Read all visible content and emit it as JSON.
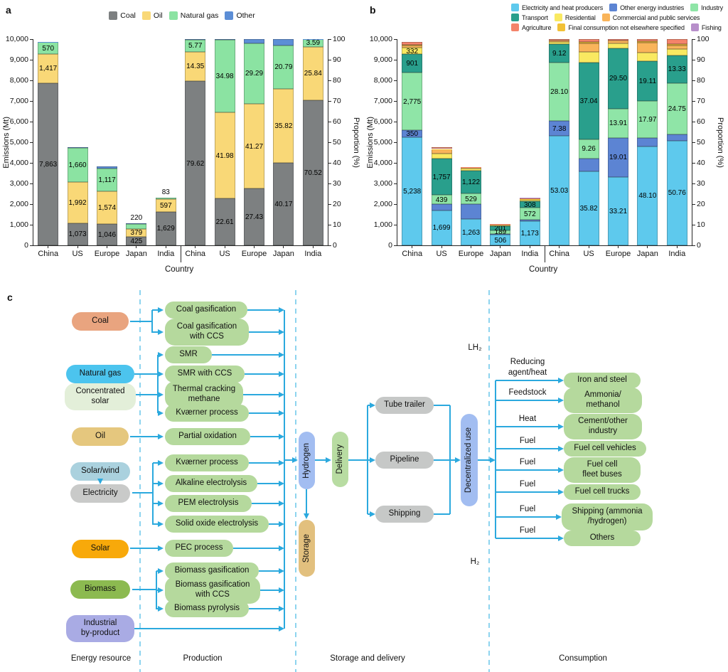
{
  "figure": {
    "panel_a_label": "a",
    "panel_b_label": "b",
    "panel_c_label": "c"
  },
  "chart_data": [
    {
      "type": "bar",
      "panel": "a",
      "stacked": true,
      "xlabel": "Country",
      "ylabel_left": "Emissions (Mt)",
      "ylabel_right": "Proportion (%)",
      "ylim_left": [
        0,
        10000
      ],
      "ylim_right": [
        0,
        100
      ],
      "yticks_left": [
        "0",
        "1,000",
        "2,000",
        "3,000",
        "4,000",
        "5,000",
        "6,000",
        "7,000",
        "8,000",
        "9,000",
        "10,000"
      ],
      "yticks_right": [
        "0",
        "10",
        "20",
        "30",
        "40",
        "50",
        "60",
        "70",
        "80",
        "90",
        "100"
      ],
      "series": [
        {
          "name": "Coal",
          "color": "#7d8081"
        },
        {
          "name": "Oil",
          "color": "#f9d877"
        },
        {
          "name": "Natural gas",
          "color": "#8be3a2"
        },
        {
          "name": "Other",
          "color": "#5c8ed6"
        }
      ],
      "legend_rows": [
        [
          "Coal",
          "Oil",
          "Natural gas",
          "Other"
        ]
      ],
      "groups": [
        {
          "axis": "left",
          "categories": [
            "China",
            "US",
            "Europe",
            "Japan",
            "India"
          ],
          "bars": [
            {
              "values": [
                7863,
                1417,
                570,
                25
              ],
              "labels": [
                "7,863",
                "1,417",
                "570",
                null
              ]
            },
            {
              "values": [
                1073,
                1992,
                1660,
                20
              ],
              "labels": [
                "1,073",
                "1,992",
                "1,660",
                null
              ]
            },
            {
              "values": [
                1046,
                1574,
                1117,
                75
              ],
              "labels": [
                "1,046",
                "1,574",
                "1,117",
                null
              ]
            },
            {
              "values": [
                425,
                379,
                220,
                33
              ],
              "labels": [
                "425",
                "379",
                "220",
                null
              ]
            },
            {
              "values": [
                1629,
                597,
                83,
                1
              ],
              "labels": [
                "1,629",
                "597",
                "83",
                null
              ]
            }
          ]
        },
        {
          "axis": "right",
          "categories": [
            "China",
            "US",
            "Europe",
            "Japan",
            "India"
          ],
          "bars": [
            {
              "values": [
                79.62,
                14.35,
                5.77,
                0.26
              ],
              "labels": [
                "79.62",
                "14.35",
                "5.77",
                null
              ]
            },
            {
              "values": [
                22.61,
                41.98,
                34.98,
                0.43
              ],
              "labels": [
                "22.61",
                "41.98",
                "34.98",
                null
              ]
            },
            {
              "values": [
                27.43,
                41.27,
                29.29,
                2.01
              ],
              "labels": [
                "27.43",
                "41.27",
                "29.29",
                null
              ]
            },
            {
              "values": [
                40.17,
                35.82,
                20.79,
                3.22
              ],
              "labels": [
                "40.17",
                "35.82",
                "20.79",
                null
              ]
            },
            {
              "values": [
                70.52,
                25.84,
                3.59,
                0.05
              ],
              "labels": [
                "70.52",
                "25.84",
                "3.59",
                null
              ]
            }
          ]
        }
      ]
    },
    {
      "type": "bar",
      "panel": "b",
      "stacked": true,
      "xlabel": "Country",
      "ylabel_left": "Emissions (Mt)",
      "ylabel_right": "Proportion (%)",
      "ylim_left": [
        0,
        10000
      ],
      "ylim_right": [
        0,
        100
      ],
      "yticks_left": [
        "0",
        "1,000",
        "2,000",
        "3,000",
        "4,000",
        "5,000",
        "6,000",
        "7,000",
        "8,000",
        "9,000",
        "10,000"
      ],
      "yticks_right": [
        "0",
        "10",
        "20",
        "30",
        "40",
        "50",
        "60",
        "70",
        "80",
        "90",
        "100"
      ],
      "series": [
        {
          "name": "Electricity and heat producers",
          "color": "#5ec9ed"
        },
        {
          "name": "Other energy industries",
          "color": "#5c84d3"
        },
        {
          "name": "Industry",
          "color": "#8fe5a7"
        },
        {
          "name": "Transport",
          "color": "#299f8c"
        },
        {
          "name": "Residential",
          "color": "#f9e961"
        },
        {
          "name": "Commercial and public services",
          "color": "#f9b45a"
        },
        {
          "name": "Final consumption not elsewhere specified",
          "color": "#f2c136"
        },
        {
          "name": "Agriculture",
          "color": "#f4836a"
        },
        {
          "name": "Fishing",
          "color": "#b78fca"
        }
      ],
      "legend_rows": [
        [
          "Electricity and heat producers",
          "Other energy industries",
          "Industry"
        ],
        [
          "Transport",
          "Residential",
          "Commercial and public services"
        ],
        [
          "Agriculture",
          "Final consumption not elsewhere specified",
          "Fishing"
        ]
      ],
      "groups": [
        {
          "axis": "left",
          "categories": [
            "China",
            "US",
            "Europe",
            "Japan",
            "India"
          ],
          "bars": [
            {
              "values": [
                5238,
                350,
                2775,
                901,
                332,
                110,
                32,
                140,
                0
              ],
              "labels": [
                "5,238",
                "350",
                "2,775",
                "901",
                "332",
                null,
                null,
                null,
                null
              ]
            },
            {
              "values": [
                1699,
                304,
                439,
                1757,
                247,
                199,
                28,
                71,
                0
              ],
              "labels": [
                "1,699",
                null,
                "439",
                "1,757",
                null,
                null,
                null,
                null,
                null
              ]
            },
            {
              "values": [
                1263,
                723,
                529,
                1122,
                91,
                49,
                0,
                25,
                0
              ],
              "labels": [
                "1,263",
                null,
                "529",
                "1,122",
                null,
                null,
                null,
                null,
                null
              ]
            },
            {
              "values": [
                506,
                42,
                189,
                201,
                45,
                49,
                7,
                13,
                0
              ],
              "labels": [
                "506",
                null,
                "189",
                "201",
                null,
                null,
                null,
                null,
                null
              ]
            },
            {
              "values": [
                1173,
                74,
                572,
                308,
                74,
                37,
                15,
                55,
                3
              ],
              "labels": [
                "1,173",
                null,
                "572",
                "308",
                null,
                null,
                null,
                null,
                null
              ]
            }
          ]
        },
        {
          "axis": "right",
          "categories": [
            "China",
            "US",
            "Europe",
            "Japan",
            "India"
          ],
          "bars": [
            {
              "values": [
                53.03,
                7.38,
                28.1,
                9.12,
                0.9,
                0.75,
                0,
                0.72,
                0
              ],
              "labels": [
                "53.03",
                "7.38",
                "28.10",
                "9.12",
                null,
                null,
                null,
                null,
                null
              ]
            },
            {
              "values": [
                35.82,
                6.4,
                9.26,
                37.04,
                5.2,
                4.2,
                0.58,
                1.5,
                0
              ],
              "labels": [
                "35.82",
                null,
                "9.26",
                "37.04",
                null,
                null,
                null,
                null,
                null
              ]
            },
            {
              "values": [
                33.21,
                19.01,
                13.91,
                29.5,
                2.4,
                1.3,
                0,
                0.67,
                0
              ],
              "labels": [
                "33.21",
                "19.01",
                "13.91",
                "29.50",
                null,
                null,
                null,
                null,
                null
              ]
            },
            {
              "values": [
                48.1,
                4.0,
                17.97,
                19.11,
                4.3,
                4.7,
                0.62,
                1.2,
                0
              ],
              "labels": [
                "48.10",
                null,
                "17.97",
                "19.11",
                null,
                null,
                null,
                null,
                null
              ]
            },
            {
              "values": [
                50.76,
                3.2,
                24.75,
                13.33,
                3.2,
                1.6,
                0.66,
                2.5,
                0
              ],
              "labels": [
                "50.76",
                null,
                "24.75",
                "13.33",
                null,
                null,
                null,
                null,
                null
              ]
            }
          ]
        }
      ]
    }
  ],
  "diagram": {
    "arrow_color": "#2ba9de",
    "dashed_line_color": "#8ed4ef",
    "process_color": "#b5d99d",
    "consumption_color": "#b5d99d",
    "transport_color": "#c6c8c7",
    "sources": [
      {
        "id": "coal",
        "label": "Coal",
        "color": "#e9a47f"
      },
      {
        "id": "natural-gas",
        "label": "Natural gas",
        "color": "#4cc4ee"
      },
      {
        "id": "concentrated-solar",
        "label": "Concentrated\nsolar",
        "color": "#e3efd9"
      },
      {
        "id": "oil",
        "label": "Oil",
        "color": "#e5c77e"
      },
      {
        "id": "solar-wind",
        "label": "Solar/wind",
        "color": "#aad1de"
      },
      {
        "id": "electricity",
        "label": "Electricity",
        "color": "#c9cac9"
      },
      {
        "id": "solar",
        "label": "Solar",
        "color": "#f8a90a"
      },
      {
        "id": "biomass",
        "label": "Biomass",
        "color": "#8cba50"
      },
      {
        "id": "industrial-by-product",
        "label": "Industrial\nby-product",
        "color": "#a9abe4"
      }
    ],
    "processes": [
      {
        "id": "coal-gasification",
        "label": "Coal gasification"
      },
      {
        "id": "coal-gasification-ccs",
        "label": "Coal gasification\nwith CCS"
      },
      {
        "id": "smr",
        "label": "SMR"
      },
      {
        "id": "smr-ccs",
        "label": "SMR with CCS"
      },
      {
        "id": "thermal-cracking-methane",
        "label": "Thermal cracking\nmethane"
      },
      {
        "id": "kvaerner-process-1",
        "label": "Kværner process"
      },
      {
        "id": "partial-oxidation",
        "label": "Partial oxidation"
      },
      {
        "id": "kvaerner-process-2",
        "label": "Kværner process"
      },
      {
        "id": "alkaline-electrolysis",
        "label": "Alkaline electrolysis"
      },
      {
        "id": "pem-electrolysis",
        "label": "PEM electrolysis"
      },
      {
        "id": "solid-oxide-electrolysis",
        "label": "Solid oxide electrolysis"
      },
      {
        "id": "pec-process",
        "label": "PEC process"
      },
      {
        "id": "biomass-gasification",
        "label": "Biomass gasification"
      },
      {
        "id": "biomass-gasification-ccs",
        "label": "Biomass gasification\nwith CCS"
      },
      {
        "id": "biomass-pyrolysis",
        "label": "Biomass pyrolysis"
      }
    ],
    "hydrogen": {
      "label": "Hydrogen",
      "color": "#a2bdf1"
    },
    "delivery": {
      "label": "Delivery",
      "color": "#b8dca2"
    },
    "storage": {
      "label": "Storage",
      "color": "#e2c07e"
    },
    "transports": [
      {
        "id": "tube-trailer",
        "label": "Tube trailer"
      },
      {
        "id": "pipeline",
        "label": "Pipeline"
      },
      {
        "id": "shipping",
        "label": "Shipping"
      }
    ],
    "decentralized": {
      "label": "Decentralized use",
      "color": "#a2bdf1"
    },
    "consumption": [
      {
        "flow": "Reducing\nagent/heat",
        "target": "Iron and steel"
      },
      {
        "flow": "Feedstock",
        "target": "Ammonia/\nmethanol"
      },
      {
        "flow": "Heat",
        "target": "Cement/other\nindustry"
      },
      {
        "flow": "Fuel",
        "target": "Fuel cell vehicles"
      },
      {
        "flow": "Fuel",
        "target": "Fuel cell\nfleet buses"
      },
      {
        "flow": "Fuel",
        "target": "Fuel cell trucks"
      },
      {
        "flow": "Fuel",
        "target": "Shipping (ammonia\n/hydrogen)"
      },
      {
        "flow": "Fuel",
        "target": "Others"
      }
    ],
    "phase_labels": {
      "lh2": "LH₂",
      "h2": "H₂"
    },
    "section_labels": [
      "Energy resource",
      "Production",
      "Storage and delivery",
      "Consumption"
    ]
  }
}
